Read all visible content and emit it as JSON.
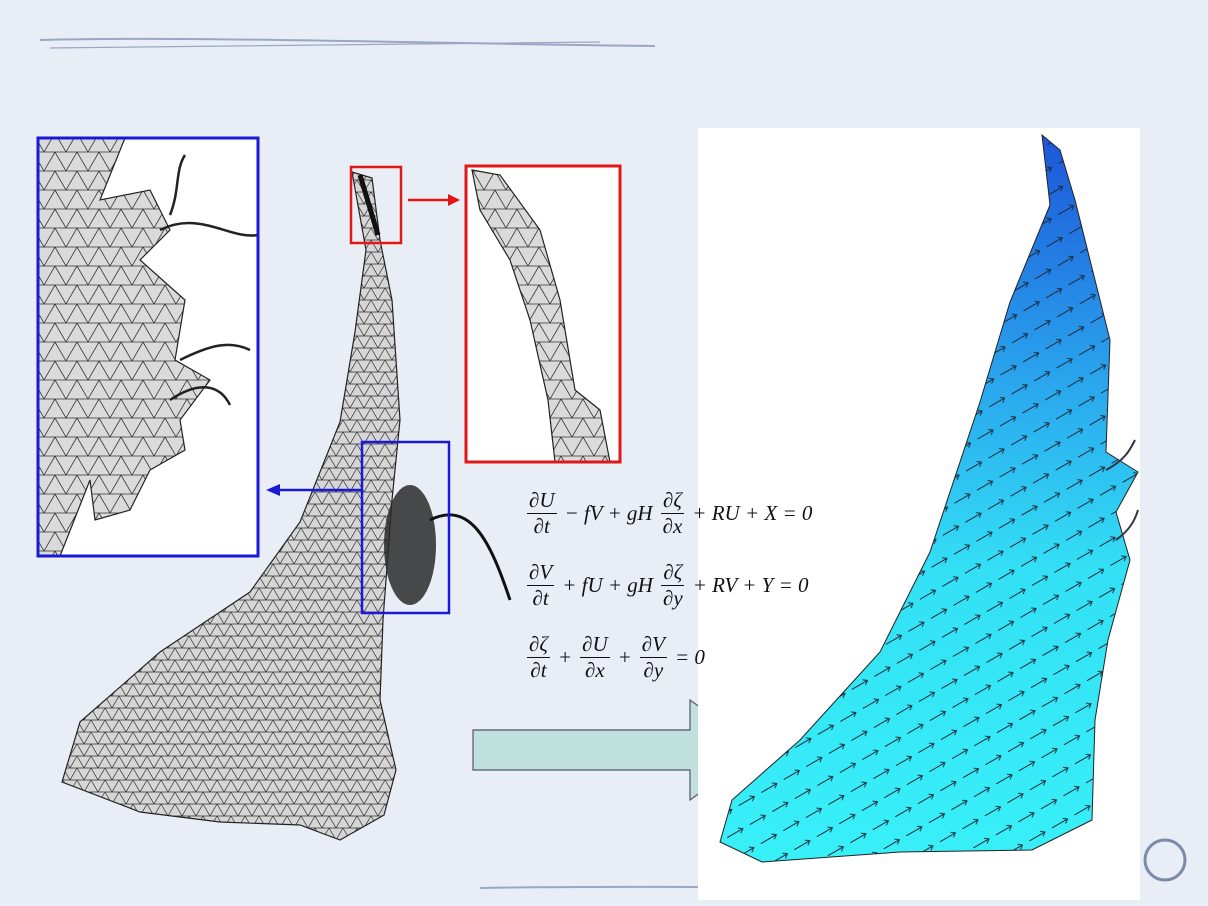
{
  "equations": [
    {
      "terms": [
        {
          "num": "∂U",
          "den": "∂t"
        },
        "− fV + gH",
        {
          "num": "∂ζ",
          "den": "∂x"
        },
        "+ RU + X = 0"
      ]
    },
    {
      "terms": [
        {
          "num": "∂V",
          "den": "∂t"
        },
        "+ fU + gH",
        {
          "num": "∂ζ",
          "den": "∂y"
        },
        "+ RV + Y = 0"
      ]
    },
    {
      "terms": [
        {
          "num": "∂ζ",
          "den": "∂t"
        },
        "+",
        {
          "num": "∂U",
          "den": "∂x"
        },
        "+",
        {
          "num": "∂V",
          "den": "∂y"
        },
        "= 0"
      ]
    }
  ]
}
